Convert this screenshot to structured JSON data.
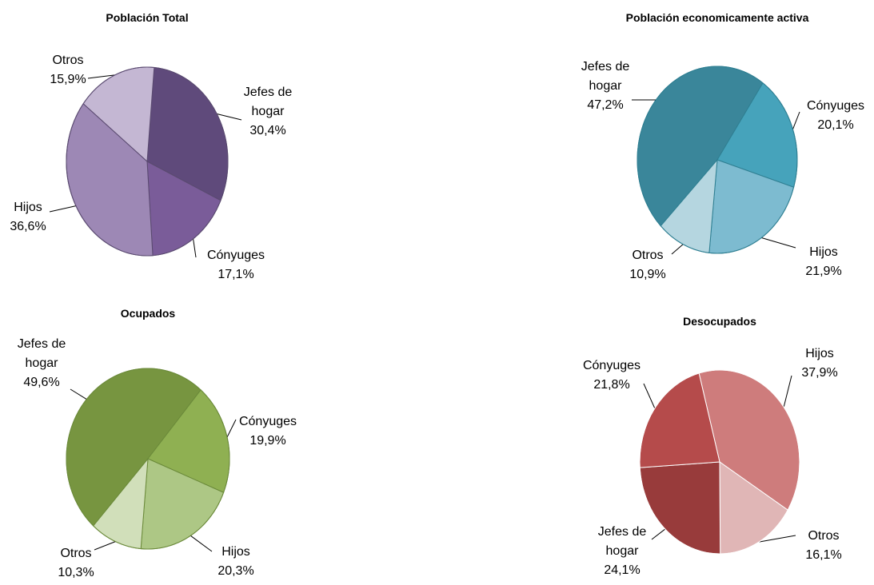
{
  "chart_data": [
    {
      "type": "pie",
      "title": "Población Total",
      "categories": [
        "Jefes de hogar",
        "Cónyuges",
        "Hijos",
        "Otros"
      ],
      "values": [
        30.4,
        17.1,
        36.6,
        15.9
      ],
      "value_labels": [
        "30,4%",
        "17,1%",
        "36,6%",
        "15,9%"
      ],
      "colors": [
        "#5f4a7b",
        "#7a5c99",
        "#9d88b5",
        "#c4b7d3"
      ],
      "edge_color": "#5a4a70"
    },
    {
      "type": "pie",
      "title": "Población economicamente activa",
      "categories": [
        "Jefes de hogar",
        "Cónyuges",
        "Hijos",
        "Otros"
      ],
      "values": [
        47.2,
        20.1,
        21.9,
        10.9
      ],
      "value_labels": [
        "47,2%",
        "20,1%",
        "21,9%",
        "10,9%"
      ],
      "colors": [
        "#3a869a",
        "#46a3bb",
        "#7dbbd0",
        "#b5d6e0"
      ],
      "edge_color": "#2f7f92"
    },
    {
      "type": "pie",
      "title": "Ocupados",
      "categories": [
        "Jefes de hogar",
        "Cónyuges",
        "Hijos",
        "Otros"
      ],
      "values": [
        49.6,
        19.9,
        20.3,
        10.3
      ],
      "value_labels": [
        "49,6%",
        "19,9%",
        "20,3%",
        "10,3%"
      ],
      "colors": [
        "#779540",
        "#8fb052",
        "#adc785",
        "#d1dfba"
      ],
      "edge_color": "#6b8a3a"
    },
    {
      "type": "pie",
      "title": "Desocupados",
      "categories": [
        "Hijos",
        "Otros",
        "Jefes de hogar",
        "Cónyuges"
      ],
      "values": [
        37.9,
        16.1,
        24.1,
        21.8
      ],
      "value_labels": [
        "37,9%",
        "16,1%",
        "24,1%",
        "21,8%"
      ],
      "colors": [
        "#ce7c7c",
        "#e0b6b6",
        "#983b3b",
        "#b54b4b"
      ],
      "edge_color": "#ffffff"
    }
  ]
}
